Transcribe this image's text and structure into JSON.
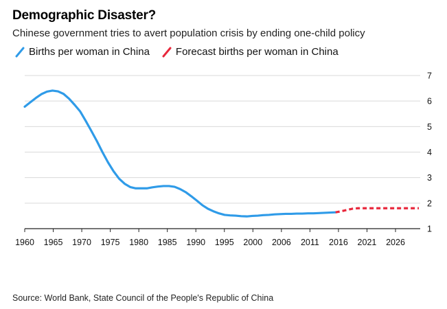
{
  "header": {
    "title": "Demographic Disaster?",
    "subtitle": "Chinese government tries to avert population crisis by ending one-child policy"
  },
  "legend": [
    {
      "label": "Births per woman in China",
      "color": "#2f9be8",
      "style": "solid"
    },
    {
      "label": "Forecast births per woman in China",
      "color": "#e8283c",
      "style": "dashed"
    }
  ],
  "footer": {
    "source": "Source: World Bank, State Council of the People's Republic of China"
  },
  "chart_data": {
    "type": "line",
    "title": "Demographic Disaster?",
    "xlabel": "",
    "ylabel": "",
    "xlim": [
      1960,
      2031
    ],
    "ylim": [
      1,
      7
    ],
    "x_ticks": [
      "1960",
      "1965",
      "1970",
      "1975",
      "1980",
      "1985",
      "1990",
      "1995",
      "2000",
      "2006",
      "2011",
      "2016",
      "2021",
      "2026"
    ],
    "y_ticks": [
      1,
      2,
      3,
      4,
      5,
      6,
      7
    ],
    "y_axis_position": "right",
    "grid": "horizontal",
    "series": [
      {
        "name": "Births per woman in China",
        "color": "#2f9be8",
        "style": "solid",
        "points": [
          [
            1960,
            5.78
          ],
          [
            1961,
            5.95
          ],
          [
            1962,
            6.12
          ],
          [
            1963,
            6.27
          ],
          [
            1964,
            6.37
          ],
          [
            1965,
            6.41
          ],
          [
            1966,
            6.38
          ],
          [
            1967,
            6.28
          ],
          [
            1968,
            6.09
          ],
          [
            1969,
            5.85
          ],
          [
            1970,
            5.59
          ],
          [
            1971,
            5.22
          ],
          [
            1972,
            4.83
          ],
          [
            1973,
            4.43
          ],
          [
            1974,
            4.0
          ],
          [
            1975,
            3.6
          ],
          [
            1976,
            3.25
          ],
          [
            1977,
            2.96
          ],
          [
            1978,
            2.76
          ],
          [
            1979,
            2.63
          ],
          [
            1980,
            2.58
          ],
          [
            1981,
            2.58
          ],
          [
            1982,
            2.58
          ],
          [
            1983,
            2.62
          ],
          [
            1984,
            2.65
          ],
          [
            1985,
            2.67
          ],
          [
            1986,
            2.67
          ],
          [
            1987,
            2.64
          ],
          [
            1988,
            2.55
          ],
          [
            1989,
            2.43
          ],
          [
            1990,
            2.27
          ],
          [
            1991,
            2.1
          ],
          [
            1992,
            1.92
          ],
          [
            1993,
            1.78
          ],
          [
            1994,
            1.68
          ],
          [
            1995,
            1.6
          ],
          [
            1996,
            1.54
          ],
          [
            1997,
            1.52
          ],
          [
            1998,
            1.51
          ],
          [
            1999,
            1.49
          ],
          [
            2000,
            1.48
          ],
          [
            2001,
            1.5
          ],
          [
            2002,
            1.51
          ],
          [
            2003,
            1.53
          ],
          [
            2004,
            1.54
          ],
          [
            2005,
            1.56
          ],
          [
            2006,
            1.57
          ],
          [
            2007,
            1.58
          ],
          [
            2008,
            1.58
          ],
          [
            2009,
            1.59
          ],
          [
            2010,
            1.59
          ],
          [
            2011,
            1.6
          ],
          [
            2012,
            1.6
          ],
          [
            2013,
            1.61
          ],
          [
            2014,
            1.62
          ],
          [
            2015,
            1.63
          ],
          [
            2016,
            1.64
          ]
        ]
      },
      {
        "name": "Forecast births per woman in China",
        "color": "#e8283c",
        "style": "dashed",
        "points": [
          [
            2016,
            1.64
          ],
          [
            2017,
            1.68
          ],
          [
            2018,
            1.73
          ],
          [
            2019,
            1.78
          ],
          [
            2020,
            1.8
          ],
          [
            2021,
            1.8
          ],
          [
            2023,
            1.8
          ],
          [
            2025,
            1.8
          ],
          [
            2027,
            1.8
          ],
          [
            2029,
            1.8
          ],
          [
            2031,
            1.8
          ]
        ]
      }
    ]
  }
}
